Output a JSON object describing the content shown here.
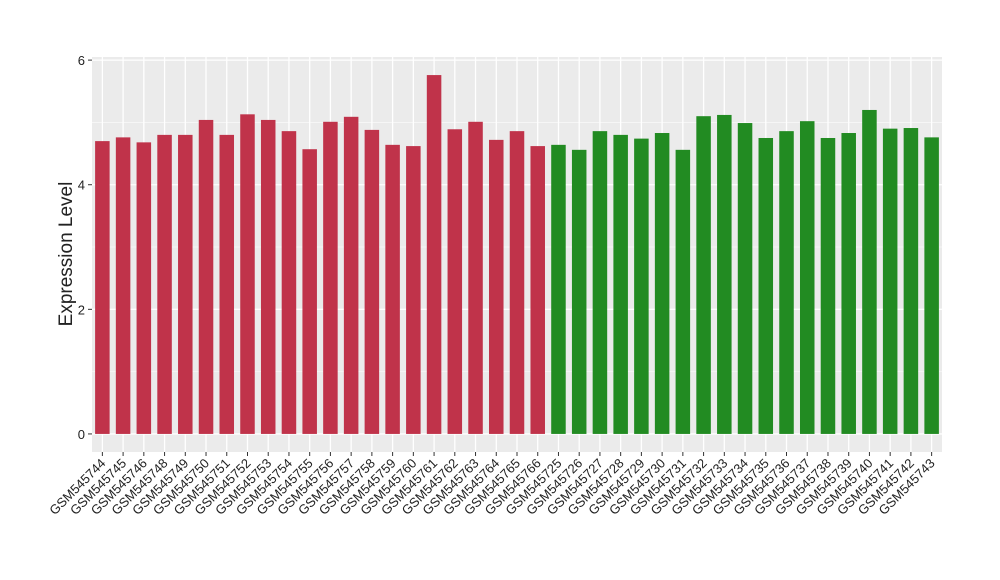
{
  "chart_data": {
    "type": "bar",
    "y_label": "Expression Level",
    "categories": [
      "GSM545744",
      "GSM545745",
      "GSM545746",
      "GSM545748",
      "GSM545749",
      "GSM545750",
      "GSM545751",
      "GSM545752",
      "GSM545753",
      "GSM545754",
      "GSM545755",
      "GSM545756",
      "GSM545757",
      "GSM545758",
      "GSM545759",
      "GSM545760",
      "GSM545761",
      "GSM545762",
      "GSM545763",
      "GSM545764",
      "GSM545765",
      "GSM545766",
      "GSM545725",
      "GSM545726",
      "GSM545727",
      "GSM545728",
      "GSM545729",
      "GSM545730",
      "GSM545731",
      "GSM545732",
      "GSM545733",
      "GSM545734",
      "GSM545735",
      "GSM545736",
      "GSM545737",
      "GSM545738",
      "GSM545739",
      "GSM545740",
      "GSM545741",
      "GSM545742",
      "GSM545743"
    ],
    "values": [
      4.7,
      4.76,
      4.68,
      4.8,
      4.8,
      5.04,
      4.8,
      5.13,
      5.04,
      4.86,
      4.57,
      5.01,
      5.09,
      4.88,
      4.64,
      4.62,
      5.76,
      4.89,
      5.01,
      4.72,
      4.86,
      4.62,
      4.64,
      4.56,
      4.86,
      4.8,
      4.74,
      4.83,
      4.56,
      5.1,
      5.12,
      4.99,
      4.75,
      4.86,
      5.02,
      4.75,
      4.83,
      5.2,
      4.9,
      4.91,
      4.76
    ],
    "colors": [
      "#c0334a",
      "#c0334a",
      "#c0334a",
      "#c0334a",
      "#c0334a",
      "#c0334a",
      "#c0334a",
      "#c0334a",
      "#c0334a",
      "#c0334a",
      "#c0334a",
      "#c0334a",
      "#c0334a",
      "#c0334a",
      "#c0334a",
      "#c0334a",
      "#c0334a",
      "#c0334a",
      "#c0334a",
      "#c0334a",
      "#c0334a",
      "#c0334a",
      "#228b22",
      "#228b22",
      "#228b22",
      "#228b22",
      "#228b22",
      "#228b22",
      "#228b22",
      "#228b22",
      "#228b22",
      "#228b22",
      "#228b22",
      "#228b22",
      "#228b22",
      "#228b22",
      "#228b22",
      "#228b22",
      "#228b22",
      "#228b22",
      "#228b22"
    ],
    "ylim": [
      -0.29,
      6.05
    ],
    "yticks": [
      0,
      2,
      4,
      6
    ],
    "grid": true
  }
}
